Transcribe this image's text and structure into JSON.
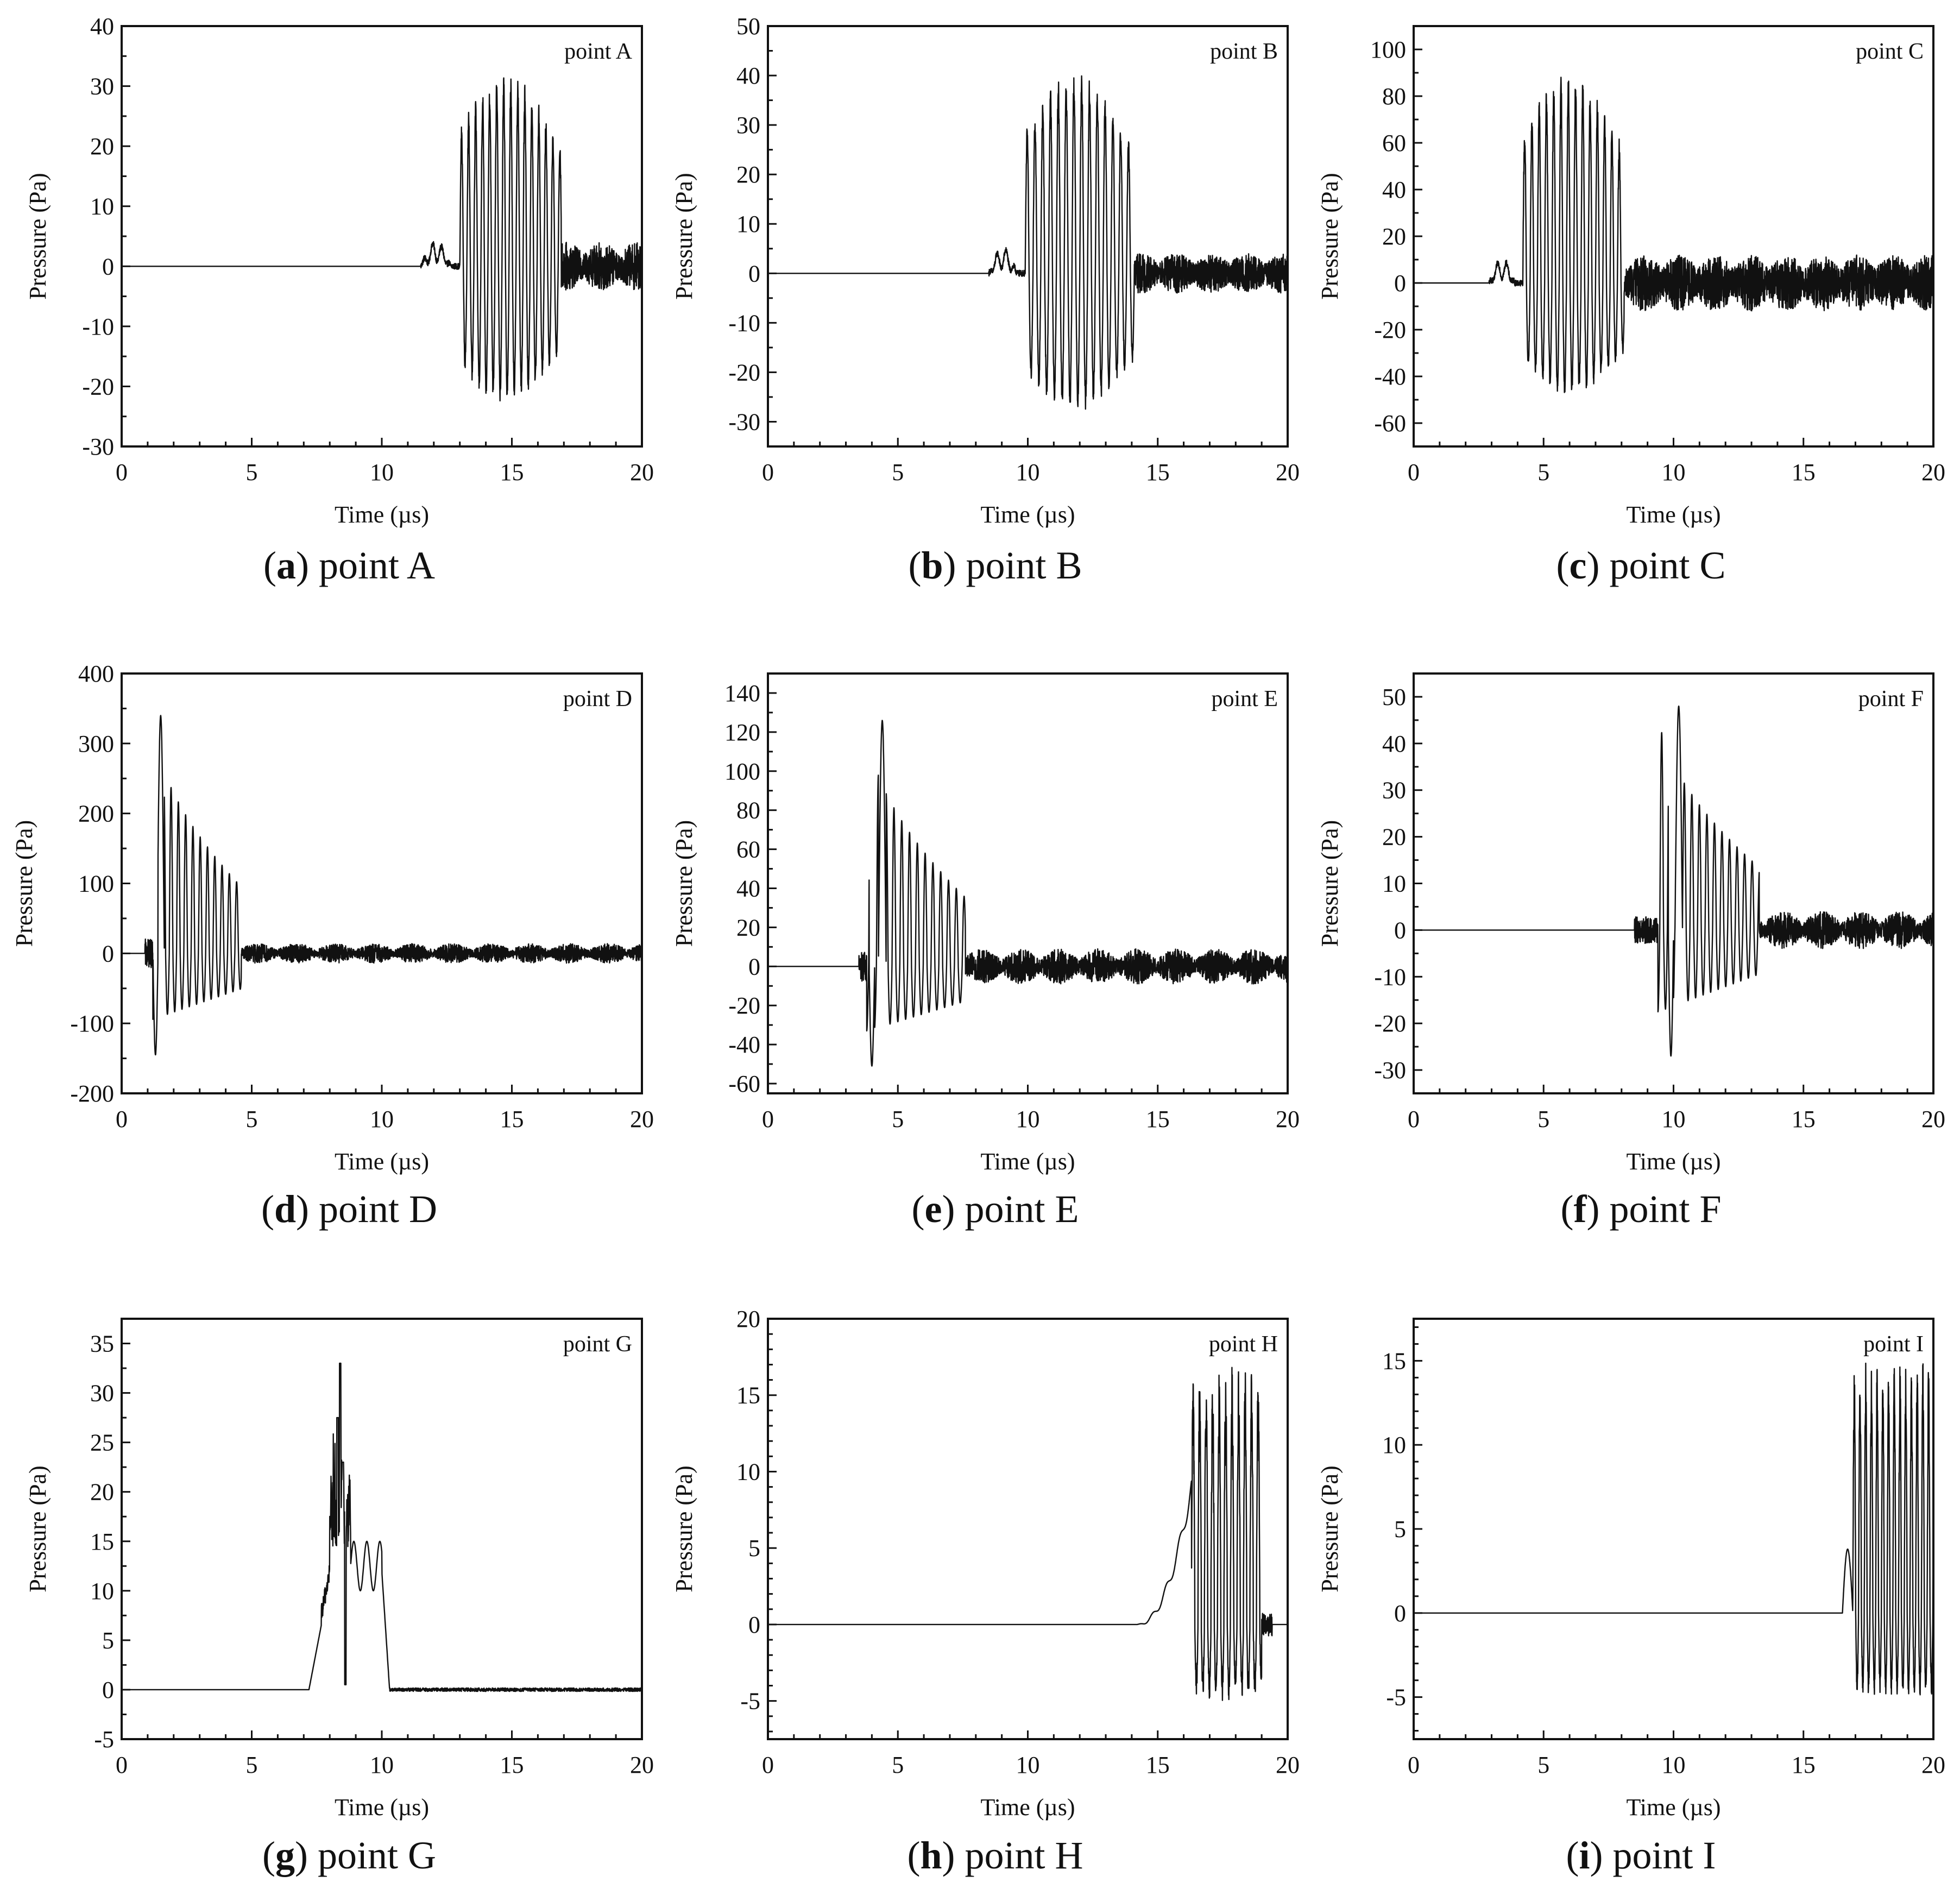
{
  "figure": {
    "x_axis_label": "Time (µs)",
    "y_axis_label": "Pressure (Pa)",
    "line_color": "#111111",
    "background": "#ffffff"
  },
  "chart_data": [
    {
      "id": "a",
      "panel_letter": "a",
      "caption_text": " point A",
      "label": "point A",
      "type": "line",
      "xlabel": "Time (µs)",
      "ylabel": "Pressure (Pa)",
      "xlim": [
        0,
        20
      ],
      "ylim": [
        -30,
        40
      ],
      "xticks": [
        0,
        5,
        10,
        15,
        20
      ],
      "yticks": [
        -30,
        -20,
        -10,
        0,
        10,
        20,
        30,
        40
      ],
      "x_minor_step": 1,
      "y_minor_step": 5,
      "arrival_us": 11.5,
      "baseline": 0,
      "precursor": {
        "t": 11.7,
        "peak": 4
      },
      "burst": {
        "start_us": 13.0,
        "end_us": 16.9,
        "period_us": 0.27,
        "max": 32,
        "min": -23
      },
      "tail": {
        "end_us": 20,
        "amplitude": 4
      },
      "series": [
        {
          "name": "point A",
          "description": "pressure waveform"
        }
      ]
    },
    {
      "id": "b",
      "panel_letter": "b",
      "caption_text": " point B",
      "label": "point B",
      "type": "line",
      "xlabel": "Time (µs)",
      "ylabel": "Pressure (Pa)",
      "xlim": [
        0,
        20
      ],
      "ylim": [
        -35,
        50
      ],
      "xticks": [
        0,
        5,
        10,
        15,
        20
      ],
      "yticks": [
        -30,
        -20,
        -10,
        0,
        10,
        20,
        30,
        40,
        50
      ],
      "x_minor_step": 1,
      "y_minor_step": 5,
      "arrival_us": 8.5,
      "baseline": 0,
      "precursor": {
        "t": 8.9,
        "peak": 5
      },
      "burst": {
        "start_us": 9.9,
        "end_us": 14.1,
        "period_us": 0.3,
        "max": 41,
        "min": -28
      },
      "tail": {
        "end_us": 20,
        "amplitude": 4
      },
      "series": [
        {
          "name": "point B",
          "description": "pressure waveform"
        }
      ]
    },
    {
      "id": "c",
      "panel_letter": "c",
      "caption_text": " point C",
      "label": "point C",
      "type": "line",
      "xlabel": "Time (µs)",
      "ylabel": "Pressure (Pa)",
      "xlim": [
        0,
        20
      ],
      "ylim": [
        -70,
        110
      ],
      "xticks": [
        0,
        5,
        10,
        15,
        20
      ],
      "yticks": [
        -60,
        -40,
        -20,
        0,
        20,
        40,
        60,
        80,
        100
      ],
      "x_minor_step": 1,
      "y_minor_step": 10,
      "arrival_us": 2.9,
      "baseline": 0,
      "precursor": {
        "t": 3.2,
        "peak": 10
      },
      "burst": {
        "start_us": 4.2,
        "end_us": 8.1,
        "period_us": 0.28,
        "max": 91,
        "min": -48
      },
      "tail": {
        "end_us": 20,
        "amplitude": 12
      },
      "series": [
        {
          "name": "point C",
          "description": "pressure waveform"
        }
      ]
    },
    {
      "id": "d",
      "panel_letter": "d",
      "caption_text": " point D",
      "label": "point D",
      "type": "line",
      "xlabel": "Time (µs)",
      "ylabel": "Pressure (Pa)",
      "xlim": [
        0,
        20
      ],
      "ylim": [
        -200,
        400
      ],
      "xticks": [
        0,
        5,
        10,
        15,
        20
      ],
      "yticks": [
        -200,
        -100,
        0,
        100,
        200,
        300,
        400
      ],
      "x_minor_step": 1,
      "y_minor_step": 50,
      "arrival_us": 0.9,
      "baseline": 0,
      "first_peak": {
        "t": 1.5,
        "value": 340
      },
      "first_trough": {
        "t": 1.3,
        "value": -145
      },
      "burst": {
        "start_us": 1.2,
        "end_us": 4.6,
        "period_us": 0.28,
        "max": 340,
        "min": -145
      },
      "tail": {
        "end_us": 20,
        "amplitude": 14
      },
      "series": [
        {
          "name": "point D",
          "description": "pressure waveform"
        }
      ]
    },
    {
      "id": "e",
      "panel_letter": "e",
      "caption_text": " point E",
      "label": "point E",
      "type": "line",
      "xlabel": "Time (µs)",
      "ylabel": "Pressure (Pa)",
      "xlim": [
        0,
        20
      ],
      "ylim": [
        -65,
        150
      ],
      "xticks": [
        0,
        5,
        10,
        15,
        20
      ],
      "yticks": [
        -60,
        -40,
        -20,
        0,
        20,
        40,
        60,
        80,
        100,
        120,
        140
      ],
      "x_minor_step": 1,
      "y_minor_step": 10,
      "arrival_us": 3.5,
      "baseline": 0,
      "first_peak": {
        "t": 4.4,
        "value": 126
      },
      "first_trough": {
        "t": 4.0,
        "value": -51
      },
      "burst": {
        "start_us": 3.8,
        "end_us": 7.6,
        "period_us": 0.3,
        "max": 126,
        "min": -51
      },
      "tail": {
        "end_us": 20,
        "amplitude": 9
      },
      "series": [
        {
          "name": "point E",
          "description": "pressure waveform"
        }
      ]
    },
    {
      "id": "f",
      "panel_letter": "f",
      "caption_text": " point F",
      "label": "point F",
      "type": "line",
      "xlabel": "Time (µs)",
      "ylabel": "Pressure (Pa)",
      "xlim": [
        0,
        20
      ],
      "ylim": [
        -35,
        55
      ],
      "xticks": [
        0,
        5,
        10,
        15,
        20
      ],
      "yticks": [
        -30,
        -20,
        -10,
        0,
        10,
        20,
        30,
        40,
        50
      ],
      "x_minor_step": 1,
      "y_minor_step": 5,
      "arrival_us": 8.5,
      "baseline": 0,
      "first_peak": {
        "t": 10.2,
        "value": 48
      },
      "first_trough": {
        "t": 9.9,
        "value": -27
      },
      "burst": {
        "start_us": 9.4,
        "end_us": 13.3,
        "period_us": 0.29,
        "max": 48,
        "min": -27
      },
      "tail": {
        "end_us": 20,
        "amplitude": 4
      },
      "series": [
        {
          "name": "point F",
          "description": "pressure waveform"
        }
      ]
    },
    {
      "id": "g",
      "panel_letter": "g",
      "caption_text": " point G",
      "label": "point G",
      "type": "line",
      "xlabel": "Time (µs)",
      "ylabel": "Pressure (Pa)",
      "xlim": [
        0,
        20
      ],
      "ylim": [
        -5,
        37.5
      ],
      "xticks": [
        0,
        5,
        10,
        15,
        20
      ],
      "yticks": [
        -5,
        0,
        5,
        10,
        15,
        20,
        25,
        30,
        35
      ],
      "x_minor_step": 1,
      "y_minor_step": 2.5,
      "arrival_us": 7.2,
      "baseline": 0,
      "peak": {
        "t": 8.4,
        "value": 33
      },
      "dip": {
        "t": 8.6,
        "value": 0.5
      },
      "secondary_peaks": [
        {
          "t": 9.3,
          "value": 15
        },
        {
          "t": 9.8,
          "value": 14.5
        }
      ],
      "pulse_end_us": 10.3,
      "series": [
        {
          "name": "point G",
          "description": "pressure waveform"
        }
      ]
    },
    {
      "id": "h",
      "panel_letter": "h",
      "caption_text": " point H",
      "label": "point H",
      "type": "line",
      "xlabel": "Time (µs)",
      "ylabel": "Pressure (Pa)",
      "xlim": [
        0,
        20
      ],
      "ylim": [
        -7.5,
        20
      ],
      "xticks": [
        0,
        5,
        10,
        15,
        20
      ],
      "yticks": [
        -5,
        0,
        5,
        10,
        15,
        20
      ],
      "x_minor_step": 1,
      "y_minor_step": 1,
      "arrival_us": 14.2,
      "baseline": 0,
      "ramp": {
        "t": 16.1,
        "value": 9
      },
      "burst": {
        "start_us": 16.3,
        "end_us": 19.0,
        "period_us": 0.25,
        "max": 17,
        "min": -5
      },
      "series": [
        {
          "name": "point H",
          "description": "pressure waveform"
        }
      ]
    },
    {
      "id": "i",
      "panel_letter": "i",
      "caption_text": " point I",
      "label": "point I",
      "type": "line",
      "xlabel": "Time (µs)",
      "ylabel": "Pressure (Pa)",
      "xlim": [
        0,
        20
      ],
      "ylim": [
        -7.5,
        17.5
      ],
      "xticks": [
        0,
        5,
        10,
        15,
        20
      ],
      "yticks": [
        -5,
        0,
        5,
        10,
        15
      ],
      "x_minor_step": 1,
      "y_minor_step": 1,
      "arrival_us": 16.5,
      "baseline": 0,
      "precursor": {
        "t": 16.7,
        "peak": 3.8
      },
      "burst": {
        "start_us": 16.9,
        "end_us": 20,
        "period_us": 0.22,
        "max": 15,
        "min": -5.5
      },
      "series": [
        {
          "name": "point I",
          "description": "pressure waveform"
        }
      ]
    }
  ]
}
